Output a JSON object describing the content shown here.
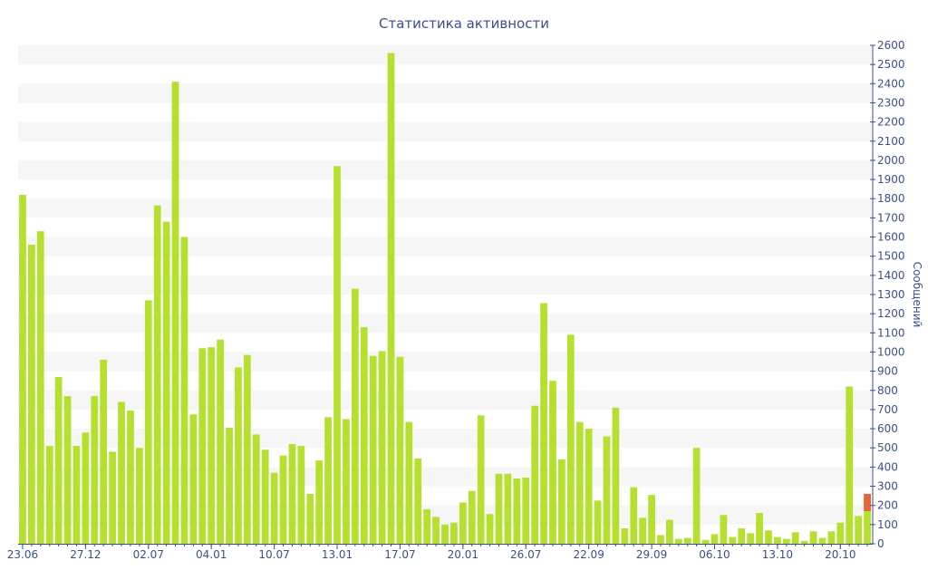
{
  "chart_data": {
    "type": "bar",
    "title": "Статистика активности",
    "xlabel": "",
    "ylabel": "Сообщений",
    "ylim": [
      0,
      2600
    ],
    "yticks": [
      0,
      100,
      200,
      300,
      400,
      500,
      600,
      700,
      800,
      900,
      1000,
      1100,
      1200,
      1300,
      1400,
      1500,
      1600,
      1700,
      1800,
      1900,
      2000,
      2100,
      2200,
      2300,
      2400,
      2500,
      2600
    ],
    "x_tick_labels": [
      {
        "label": "23.06",
        "index": 0
      },
      {
        "label": "27.12",
        "index": 7
      },
      {
        "label": "02.07",
        "index": 14
      },
      {
        "label": "04.01",
        "index": 21
      },
      {
        "label": "10.07",
        "index": 28
      },
      {
        "label": "13.01",
        "index": 35
      },
      {
        "label": "17.07",
        "index": 42
      },
      {
        "label": "20.01",
        "index": 49
      },
      {
        "label": "26.07",
        "index": 56
      },
      {
        "label": "22.09",
        "index": 63
      },
      {
        "label": "29.09",
        "index": 70
      },
      {
        "label": "06.10",
        "index": 77
      },
      {
        "label": "13.10",
        "index": 84
      },
      {
        "label": "20.10",
        "index": 91
      }
    ],
    "grid": "alternating horizontal bands",
    "y_axis_position": "right",
    "colors": {
      "bar": "#b5e02f",
      "highlight": "#e8623a",
      "axis": "#3b4f8c",
      "band": "#f6f6f6"
    },
    "series": [
      {
        "values": [
          1820,
          1560,
          1630,
          510,
          870,
          770,
          510,
          580,
          770,
          960,
          480,
          740,
          695,
          500,
          1270,
          1765,
          1680,
          2410,
          1600,
          675,
          1020,
          1025,
          1065,
          605,
          920,
          985,
          570,
          490,
          370,
          460,
          520,
          510,
          260,
          435,
          660,
          1970,
          650,
          1330,
          1130,
          980,
          1005,
          2560,
          975,
          635,
          445,
          180,
          140,
          100,
          110,
          215,
          275,
          670,
          155,
          365,
          365,
          340,
          345,
          720,
          1255,
          850,
          440,
          1090,
          635,
          600,
          225,
          560,
          710,
          80,
          295,
          135,
          255,
          45,
          125,
          25,
          30,
          500,
          20,
          50,
          150,
          35,
          80,
          55,
          160,
          70,
          35,
          25,
          60,
          15,
          65,
          30,
          65,
          110,
          820,
          145,
          260
        ]
      }
    ],
    "highlight_segment": {
      "index": 94,
      "from": 170,
      "to": 260
    }
  }
}
